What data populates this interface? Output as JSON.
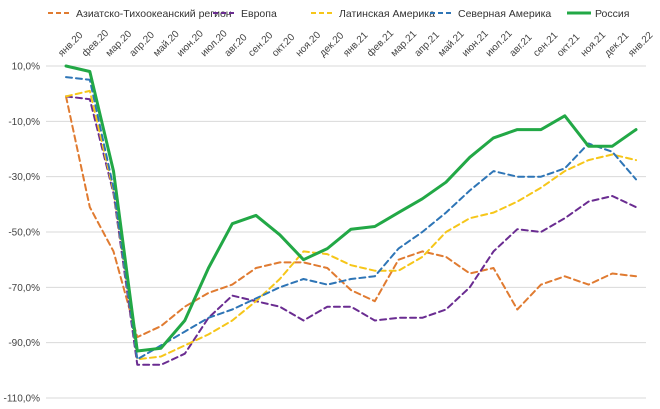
{
  "chart_data": {
    "type": "line",
    "title": "",
    "xlabel": "",
    "ylabel": "",
    "ylim": [
      -110,
      10
    ],
    "yticks": [
      10,
      -10,
      -30,
      -50,
      -70,
      -90,
      -110
    ],
    "ytick_labels": [
      "10,0%",
      "-10,0%",
      "-30,0%",
      "-50,0%",
      "-70,0%",
      "-90,0%",
      "-110,0%"
    ],
    "grid": true,
    "legend_position": "top",
    "categories": [
      "янв.20",
      "фев.20",
      "мар.20",
      "апр.20",
      "май.20",
      "июн.20",
      "июл.20",
      "авг.20",
      "сен.20",
      "окт.20",
      "ноя.20",
      "дек.20",
      "янв.21",
      "фев.21",
      "мар.21",
      "апр.21",
      "май.21",
      "июн.21",
      "июл.21",
      "авг.21",
      "сен.21",
      "окт.21",
      "ноя.21",
      "дек.21",
      "янв.22"
    ],
    "series": [
      {
        "name": "Азиатско-Тихоокеанский регион",
        "color": "#e07b31",
        "dash": "dashed",
        "values": [
          -1,
          -41,
          -57,
          -88,
          -84,
          -77,
          -72,
          -69,
          -63,
          -61,
          -61,
          -63,
          -71,
          -75,
          -60,
          -57,
          -59,
          -65,
          -63,
          -78,
          -69,
          -66,
          -69,
          -65,
          -66
        ]
      },
      {
        "name": "Европа",
        "color": "#6a2c91",
        "dash": "dashed",
        "values": [
          -1,
          -2,
          -36,
          -98,
          -98,
          -94,
          -81,
          -73,
          -75,
          -77,
          -82,
          -77,
          -77,
          -82,
          -81,
          -81,
          -78,
          -70,
          -57,
          -49,
          -50,
          -45,
          -39,
          -37,
          -41
        ]
      },
      {
        "name": "Латинская Америка",
        "color": "#f6c619",
        "dash": "dashed",
        "values": [
          -1,
          1,
          -35,
          -96,
          -95,
          -91,
          -87,
          -82,
          -75,
          -67,
          -57,
          -58,
          -62,
          -64,
          -64,
          -59,
          -50,
          -45,
          -43,
          -39,
          -34,
          -28,
          -24,
          -22,
          -24
        ]
      },
      {
        "name": "Северная Америка",
        "color": "#2e75b6",
        "dash": "dashed",
        "values": [
          6,
          5,
          -34,
          -96,
          -91,
          -86,
          -81,
          -78,
          -74,
          -70,
          -67,
          -69,
          -67,
          -66,
          -56,
          -50,
          -43,
          -35,
          -28,
          -30,
          -30,
          -27,
          -18,
          -21,
          -31
        ]
      },
      {
        "name": "Россия",
        "color": "#22a846",
        "dash": "solid",
        "values": [
          10,
          8,
          -28,
          -93,
          -92,
          -82,
          -63,
          -47,
          -44,
          -51,
          -60,
          -56,
          -49,
          -48,
          -43,
          -38,
          -32,
          -23,
          -16,
          -13,
          -13,
          -8,
          -19,
          -19,
          -13
        ]
      }
    ]
  }
}
